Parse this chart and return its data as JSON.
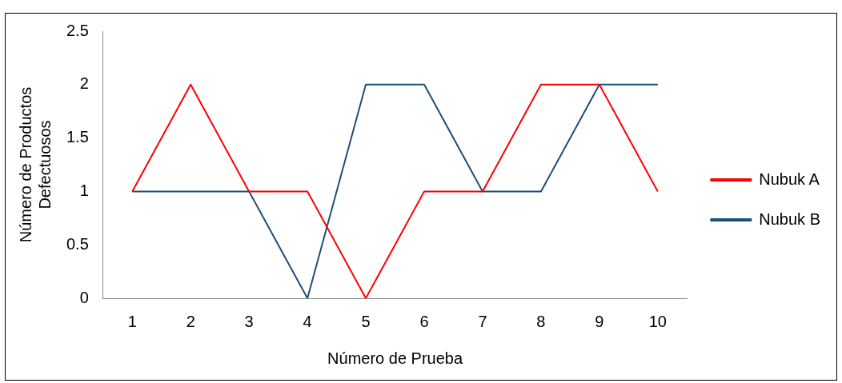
{
  "chart_data": {
    "type": "line",
    "xlabel": "Número de Prueba",
    "ylabel": "Número de Productos Defectuosos",
    "categories": [
      "1",
      "2",
      "3",
      "4",
      "5",
      "6",
      "7",
      "8",
      "9",
      "10"
    ],
    "series": [
      {
        "name": "Nubuk A",
        "color": "#ff0000",
        "values": [
          1,
          2,
          1,
          1,
          0,
          1,
          1,
          2,
          2,
          1
        ]
      },
      {
        "name": "Nubuk B",
        "color": "#1f4e79",
        "values": [
          1,
          1,
          1,
          0,
          2,
          2,
          1,
          1,
          2,
          2
        ]
      }
    ],
    "ylim": [
      0,
      2.5
    ],
    "yticks": [
      0,
      0.5,
      1,
      1.5,
      2,
      2.5
    ],
    "grid": false,
    "legend": "right",
    "marker": "none",
    "line_style": "solid"
  }
}
